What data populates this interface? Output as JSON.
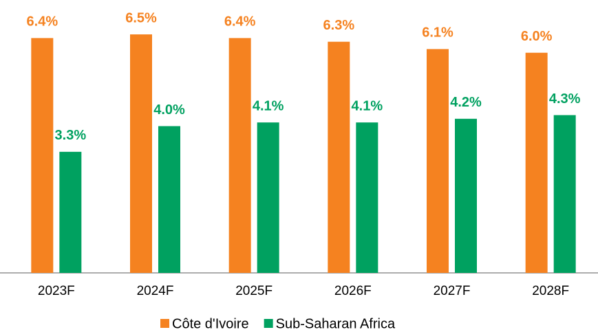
{
  "chart_data": {
    "type": "bar",
    "categories": [
      "2023F",
      "2024F",
      "2025F",
      "2026F",
      "2027F",
      "2028F"
    ],
    "series": [
      {
        "name": "Côte d'Ivoire",
        "color": "#f58220",
        "values": [
          6.4,
          6.5,
          6.4,
          6.3,
          6.1,
          6.0
        ],
        "value_labels": [
          "6.4%",
          "6.5%",
          "6.4%",
          "6.3%",
          "6.1%",
          "6.0%"
        ]
      },
      {
        "name": "Sub-Saharan Africa",
        "color": "#00a160",
        "values": [
          3.3,
          4.0,
          4.1,
          4.1,
          4.2,
          4.3
        ],
        "value_labels": [
          "3.3%",
          "4.0%",
          "4.1%",
          "4.1%",
          "4.2%",
          "4.3%"
        ]
      }
    ],
    "ylim": [
      0,
      7.4
    ],
    "legend": "bottom"
  }
}
